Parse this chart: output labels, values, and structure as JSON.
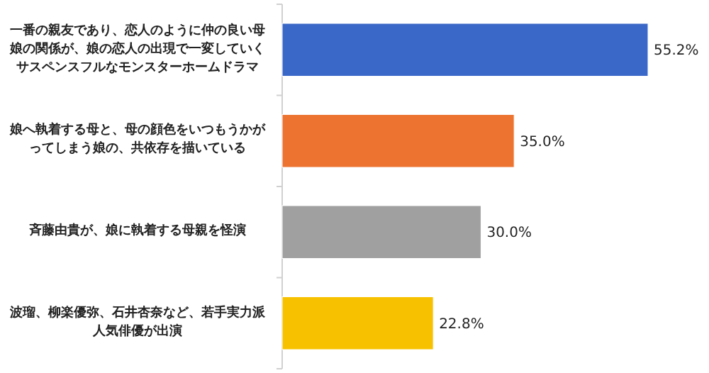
{
  "chart_data": {
    "type": "bar",
    "orientation": "horizontal",
    "data_labels": true,
    "categories": [
      "一番の親友であり、恋人のように仲の良い母娘の関係が、娘の恋人の出現で一変していくサスペンスフルなモンスターホームドラマ",
      "娘へ執着する母と、母の顔色をいつもうかがってしまう娘の、共依存を描いている",
      "斉藤由貴が、娘に執着する母親を怪演",
      "波瑠、柳楽優弥、石井杏奈など、若手実力派人気俳優が出演"
    ],
    "values": [
      55.2,
      35.0,
      30.0,
      22.8
    ],
    "value_labels": [
      "55.2%",
      "35.0%",
      "30.0%",
      "22.8%"
    ],
    "colors": [
      "#3a68c8",
      "#ec7330",
      "#a0a0a0",
      "#f8c100"
    ]
  }
}
